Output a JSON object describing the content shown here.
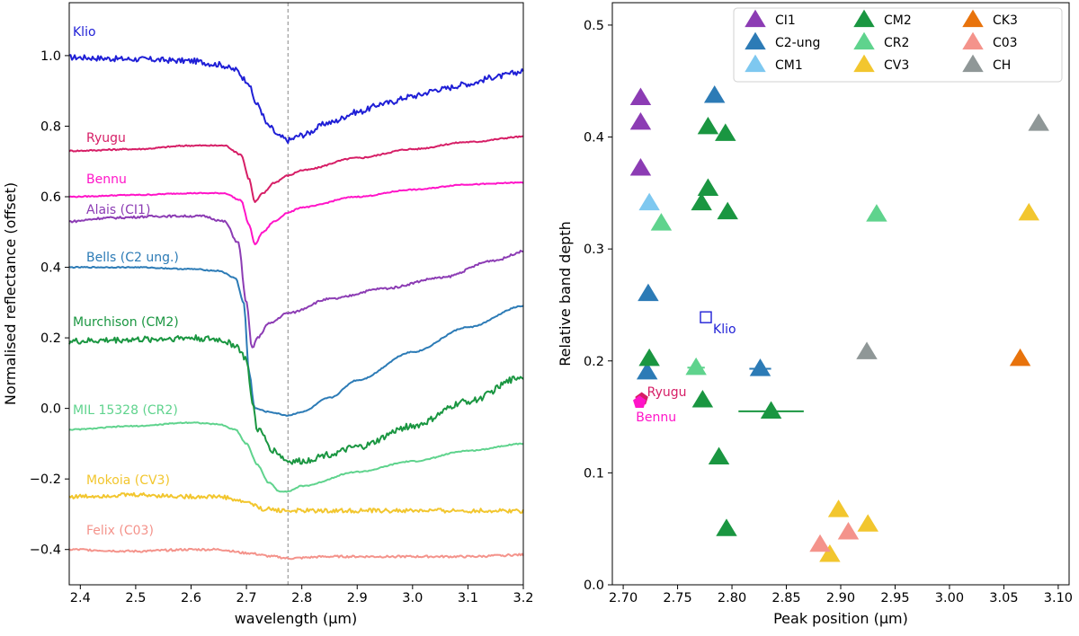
{
  "chart_data": [
    {
      "type": "line",
      "xlabel": "wavelength (µm)",
      "ylabel": "Normalised reflectance (offset)",
      "xlim": [
        2.38,
        3.2
      ],
      "ylim": [
        -0.5,
        1.15
      ],
      "xticks": [
        "2.4",
        "2.5",
        "2.6",
        "2.7",
        "2.8",
        "2.9",
        "3.0",
        "3.1",
        "3.2"
      ],
      "yticks": [
        "−0.4",
        "−0.2",
        "0.0",
        "0.2",
        "0.4",
        "0.6",
        "0.8",
        "1.0"
      ],
      "reference_line_x": 2.775,
      "series": [
        {
          "name": "Klio",
          "color": "#1f1fd6",
          "noise": 0.008,
          "x": [
            2.38,
            2.5,
            2.6,
            2.65,
            2.68,
            2.7,
            2.72,
            2.74,
            2.76,
            2.775,
            2.8,
            2.85,
            2.9,
            2.95,
            3.0,
            3.05,
            3.1,
            3.15,
            3.2
          ],
          "y": [
            0.995,
            0.99,
            0.985,
            0.975,
            0.96,
            0.93,
            0.86,
            0.8,
            0.77,
            0.76,
            0.775,
            0.81,
            0.84,
            0.865,
            0.885,
            0.905,
            0.92,
            0.94,
            0.955
          ]
        },
        {
          "name": "Ryugu",
          "color": "#d61e66",
          "noise": 0.002,
          "x": [
            2.38,
            2.5,
            2.6,
            2.66,
            2.69,
            2.705,
            2.715,
            2.73,
            2.75,
            2.775,
            2.8,
            2.9,
            3.0,
            3.1,
            3.2
          ],
          "y": [
            0.73,
            0.735,
            0.745,
            0.745,
            0.72,
            0.65,
            0.585,
            0.61,
            0.64,
            0.66,
            0.675,
            0.71,
            0.735,
            0.755,
            0.77
          ]
        },
        {
          "name": "Bennu",
          "color": "#ff14c8",
          "noise": 0.0015,
          "x": [
            2.38,
            2.5,
            2.6,
            2.66,
            2.69,
            2.705,
            2.715,
            2.73,
            2.75,
            2.775,
            2.8,
            2.9,
            3.0,
            3.1,
            3.2
          ],
          "y": [
            0.6,
            0.605,
            0.61,
            0.61,
            0.59,
            0.52,
            0.465,
            0.5,
            0.53,
            0.555,
            0.57,
            0.6,
            0.62,
            0.635,
            0.64
          ]
        },
        {
          "name": "Alais (CI1)",
          "color": "#8c3cb4",
          "noise": 0.003,
          "x": [
            2.38,
            2.45,
            2.55,
            2.62,
            2.66,
            2.685,
            2.7,
            2.71,
            2.72,
            2.74,
            2.775,
            2.85,
            2.95,
            3.05,
            3.15,
            3.2
          ],
          "y": [
            0.53,
            0.54,
            0.545,
            0.545,
            0.53,
            0.47,
            0.3,
            0.17,
            0.2,
            0.24,
            0.27,
            0.31,
            0.34,
            0.37,
            0.42,
            0.445
          ]
        },
        {
          "name": "Bells (C2 ung.)",
          "color": "#2c7bb6",
          "noise": 0.0015,
          "x": [
            2.38,
            2.5,
            2.6,
            2.65,
            2.68,
            2.695,
            2.705,
            2.715,
            2.74,
            2.775,
            2.8,
            2.85,
            2.9,
            3.0,
            3.1,
            3.2
          ],
          "y": [
            0.4,
            0.4,
            0.395,
            0.39,
            0.37,
            0.3,
            0.1,
            0.0,
            -0.01,
            -0.02,
            -0.01,
            0.03,
            0.08,
            0.16,
            0.23,
            0.29
          ]
        },
        {
          "name": "Murchison (CM2)",
          "color": "#1a9641",
          "noise": 0.009,
          "x": [
            2.38,
            2.5,
            2.6,
            2.65,
            2.68,
            2.7,
            2.71,
            2.72,
            2.75,
            2.775,
            2.8,
            2.85,
            2.9,
            3.0,
            3.1,
            3.2
          ],
          "y": [
            0.19,
            0.195,
            0.2,
            0.195,
            0.18,
            0.14,
            0.02,
            -0.06,
            -0.12,
            -0.15,
            -0.15,
            -0.13,
            -0.11,
            -0.05,
            0.02,
            0.09
          ]
        },
        {
          "name": "MIL 15328 (CR2)",
          "color": "#5fd38d",
          "noise": 0.0015,
          "x": [
            2.38,
            2.5,
            2.6,
            2.65,
            2.68,
            2.7,
            2.72,
            2.74,
            2.76,
            2.775,
            2.8,
            2.9,
            3.0,
            3.1,
            3.2
          ],
          "y": [
            -0.06,
            -0.05,
            -0.04,
            -0.045,
            -0.06,
            -0.1,
            -0.16,
            -0.21,
            -0.235,
            -0.235,
            -0.22,
            -0.18,
            -0.15,
            -0.12,
            -0.1
          ]
        },
        {
          "name": "Mokoia (CV3)",
          "color": "#f2c62e",
          "noise": 0.006,
          "x": [
            2.38,
            2.5,
            2.6,
            2.65,
            2.7,
            2.73,
            2.775,
            2.85,
            2.9,
            3.0,
            3.1,
            3.2
          ],
          "y": [
            -0.25,
            -0.245,
            -0.25,
            -0.25,
            -0.265,
            -0.285,
            -0.29,
            -0.29,
            -0.29,
            -0.29,
            -0.29,
            -0.29
          ]
        },
        {
          "name": "Felix (C03)",
          "color": "#f4938b",
          "noise": 0.003,
          "x": [
            2.38,
            2.5,
            2.6,
            2.65,
            2.7,
            2.75,
            2.775,
            2.85,
            2.9,
            3.0,
            3.1,
            3.2
          ],
          "y": [
            -0.4,
            -0.405,
            -0.4,
            -0.4,
            -0.41,
            -0.42,
            -0.425,
            -0.42,
            -0.42,
            -0.42,
            -0.42,
            -0.415
          ]
        }
      ]
    },
    {
      "type": "scatter",
      "xlabel": "Peak position (µm)",
      "ylabel": "Relative band depth",
      "xlim": [
        2.69,
        3.11
      ],
      "ylim": [
        0.0,
        0.52
      ],
      "xticks": [
        "2.70",
        "2.75",
        "2.80",
        "2.85",
        "2.90",
        "2.95",
        "3.00",
        "3.05",
        "3.10"
      ],
      "yticks": [
        "0.0",
        "0.1",
        "0.2",
        "0.3",
        "0.4",
        "0.5"
      ],
      "legend_position": "top-right",
      "groups": [
        {
          "name": "CI1",
          "color": "#8c3cb4",
          "points": [
            {
              "x": 2.716,
              "y": 0.435
            },
            {
              "x": 2.716,
              "y": 0.413
            },
            {
              "x": 2.716,
              "y": 0.372
            }
          ]
        },
        {
          "name": "C2-ung",
          "color": "#2c7bb6",
          "points": [
            {
              "x": 2.784,
              "y": 0.437
            },
            {
              "x": 2.723,
              "y": 0.26
            },
            {
              "x": 2.722,
              "y": 0.19
            },
            {
              "x": 2.826,
              "y": 0.193,
              "xerr": 0.01
            }
          ]
        },
        {
          "name": "CM1",
          "color": "#7ec8f0",
          "points": [
            {
              "x": 2.724,
              "y": 0.341
            }
          ]
        },
        {
          "name": "CM2",
          "color": "#1a9641",
          "points": [
            {
              "x": 2.778,
              "y": 0.409
            },
            {
              "x": 2.794,
              "y": 0.403
            },
            {
              "x": 2.778,
              "y": 0.354
            },
            {
              "x": 2.772,
              "y": 0.341
            },
            {
              "x": 2.796,
              "y": 0.333
            },
            {
              "x": 2.724,
              "y": 0.202
            },
            {
              "x": 2.773,
              "y": 0.165
            },
            {
              "x": 2.836,
              "y": 0.155,
              "xerr": 0.03
            },
            {
              "x": 2.788,
              "y": 0.114
            },
            {
              "x": 2.795,
              "y": 0.05
            }
          ]
        },
        {
          "name": "CR2",
          "color": "#5fd38d",
          "points": [
            {
              "x": 2.735,
              "y": 0.323
            },
            {
              "x": 2.933,
              "y": 0.331
            },
            {
              "x": 2.767,
              "y": 0.194,
              "xerr": 0.008
            }
          ]
        },
        {
          "name": "CV3",
          "color": "#f2c62e",
          "points": [
            {
              "x": 3.073,
              "y": 0.332
            },
            {
              "x": 2.898,
              "y": 0.067
            },
            {
              "x": 2.925,
              "y": 0.054
            },
            {
              "x": 2.89,
              "y": 0.027
            }
          ]
        },
        {
          "name": "CK3",
          "color": "#e8730c",
          "points": [
            {
              "x": 3.065,
              "y": 0.202
            }
          ]
        },
        {
          "name": "C03",
          "color": "#f4938b",
          "points": [
            {
              "x": 2.881,
              "y": 0.036
            },
            {
              "x": 2.907,
              "y": 0.047
            }
          ]
        },
        {
          "name": "CH",
          "color": "#8f9797",
          "points": [
            {
              "x": 3.082,
              "y": 0.412
            },
            {
              "x": 2.924,
              "y": 0.208
            }
          ]
        }
      ],
      "objects": [
        {
          "name": "Klio",
          "color": "#1f1fd6",
          "marker": "square",
          "x": 2.776,
          "y": 0.239
        },
        {
          "name": "Ryugu",
          "color": "#d61e66",
          "marker": "pentagon",
          "x": 2.717,
          "y": 0.166
        },
        {
          "name": "Bennu",
          "color": "#ff14c8",
          "marker": "pentagon",
          "x": 2.715,
          "y": 0.163
        }
      ]
    }
  ]
}
